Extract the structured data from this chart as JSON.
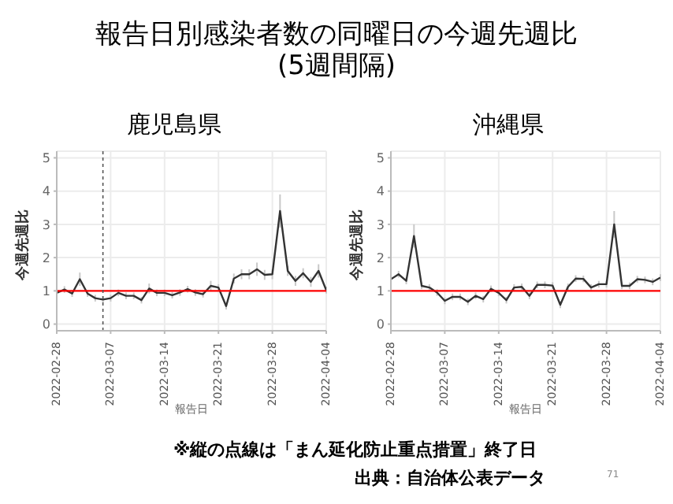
{
  "chart_data": [
    {
      "type": "other",
      "title": "報告日別感染者数の同曜日の今週先週比",
      "subtitle": "(5週間隔)",
      "annotations": [
        "※縦の点線は「まん延化防止重点措置」終了日",
        "出典：自治体公表データ",
        "71"
      ]
    },
    {
      "type": "line",
      "title": "鹿児島県",
      "xlabel": "報告日",
      "ylabel": "今週先週比",
      "x": [
        "2022-02-28",
        "2022-03-01",
        "2022-03-02",
        "2022-03-03",
        "2022-03-04",
        "2022-03-05",
        "2022-03-06",
        "2022-03-07",
        "2022-03-08",
        "2022-03-09",
        "2022-03-10",
        "2022-03-11",
        "2022-03-12",
        "2022-03-13",
        "2022-03-14",
        "2022-03-15",
        "2022-03-16",
        "2022-03-17",
        "2022-03-18",
        "2022-03-19",
        "2022-03-20",
        "2022-03-21",
        "2022-03-22",
        "2022-03-23",
        "2022-03-24",
        "2022-03-25",
        "2022-03-26",
        "2022-03-27",
        "2022-03-28",
        "2022-03-29",
        "2022-03-30",
        "2022-03-31",
        "2022-04-01",
        "2022-04-02",
        "2022-04-03",
        "2022-04-04"
      ],
      "series": [
        {
          "color": "#333333",
          "values": [
            0.94,
            1.04,
            0.92,
            1.35,
            0.92,
            0.78,
            0.74,
            0.78,
            0.94,
            0.85,
            0.85,
            0.72,
            1.07,
            0.94,
            0.94,
            0.87,
            0.95,
            1.05,
            0.95,
            0.9,
            1.15,
            1.1,
            0.54,
            1.37,
            1.5,
            1.5,
            1.65,
            1.48,
            1.5,
            3.4,
            1.6,
            1.3,
            1.53,
            1.27,
            1.6,
            1.02
          ],
          "errors": [
            0.1,
            0.1,
            0.1,
            0.2,
            0.1,
            0.1,
            0.1,
            0.1,
            0.1,
            0.1,
            0.1,
            0.1,
            0.15,
            0.1,
            0.1,
            0.1,
            0.1,
            0.1,
            0.1,
            0.1,
            0.15,
            0.1,
            0.1,
            0.15,
            0.15,
            0.15,
            0.2,
            0.15,
            0.15,
            0.5,
            0.15,
            0.15,
            0.15,
            0.15,
            0.2,
            0.1
          ]
        }
      ],
      "xlim": [
        "2022-02-28",
        "2022-04-04"
      ],
      "xticks": [
        "2022-02-28",
        "2022-03-07",
        "2022-03-14",
        "2022-03-21",
        "2022-03-28",
        "2022-04-04"
      ],
      "ylim": [
        -0.2,
        5.2
      ],
      "yticks": [
        0,
        1,
        2,
        3,
        4,
        5
      ],
      "grid": true,
      "legend": false,
      "marker": "none",
      "line_style": "solid",
      "ref_lines": [
        {
          "axis": "y",
          "value": 1,
          "color": "#ff0000",
          "line_style": "solid"
        },
        {
          "axis": "x",
          "value": "2022-03-06",
          "color": "#555555",
          "line_style": "dotted"
        }
      ]
    },
    {
      "type": "line",
      "title": "沖縄県",
      "xlabel": "報告日",
      "ylabel": "今週先週比",
      "x": [
        "2022-02-28",
        "2022-03-01",
        "2022-03-02",
        "2022-03-03",
        "2022-03-04",
        "2022-03-05",
        "2022-03-06",
        "2022-03-07",
        "2022-03-08",
        "2022-03-09",
        "2022-03-10",
        "2022-03-11",
        "2022-03-12",
        "2022-03-13",
        "2022-03-14",
        "2022-03-15",
        "2022-03-16",
        "2022-03-17",
        "2022-03-18",
        "2022-03-19",
        "2022-03-20",
        "2022-03-21",
        "2022-03-22",
        "2022-03-23",
        "2022-03-24",
        "2022-03-25",
        "2022-03-26",
        "2022-03-27",
        "2022-03-28",
        "2022-03-29",
        "2022-03-30",
        "2022-03-31",
        "2022-04-01",
        "2022-04-02",
        "2022-04-03",
        "2022-04-04"
      ],
      "series": [
        {
          "color": "#333333",
          "values": [
            1.35,
            1.5,
            1.3,
            2.65,
            1.15,
            1.1,
            0.95,
            0.7,
            0.82,
            0.82,
            0.67,
            0.85,
            0.75,
            1.06,
            0.94,
            0.72,
            1.1,
            1.12,
            0.85,
            1.18,
            1.18,
            1.16,
            0.58,
            1.12,
            1.37,
            1.36,
            1.1,
            1.2,
            1.2,
            3.0,
            1.15,
            1.15,
            1.35,
            1.33,
            1.27,
            1.4
          ],
          "errors": [
            0.1,
            0.1,
            0.1,
            0.35,
            0.1,
            0.1,
            0.1,
            0.1,
            0.1,
            0.1,
            0.1,
            0.1,
            0.1,
            0.1,
            0.1,
            0.1,
            0.1,
            0.1,
            0.1,
            0.1,
            0.1,
            0.1,
            0.1,
            0.1,
            0.1,
            0.1,
            0.1,
            0.1,
            0.1,
            0.4,
            0.1,
            0.1,
            0.1,
            0.1,
            0.1,
            0.1
          ]
        }
      ],
      "xlim": [
        "2022-02-28",
        "2022-04-04"
      ],
      "xticks": [
        "2022-02-28",
        "2022-03-07",
        "2022-03-14",
        "2022-03-21",
        "2022-03-28",
        "2022-04-04"
      ],
      "ylim": [
        -0.2,
        5.2
      ],
      "yticks": [
        0,
        1,
        2,
        3,
        4,
        5
      ],
      "grid": true,
      "legend": false,
      "marker": "none",
      "line_style": "solid",
      "ref_lines": [
        {
          "axis": "y",
          "value": 1,
          "color": "#ff0000",
          "line_style": "solid"
        }
      ]
    }
  ]
}
